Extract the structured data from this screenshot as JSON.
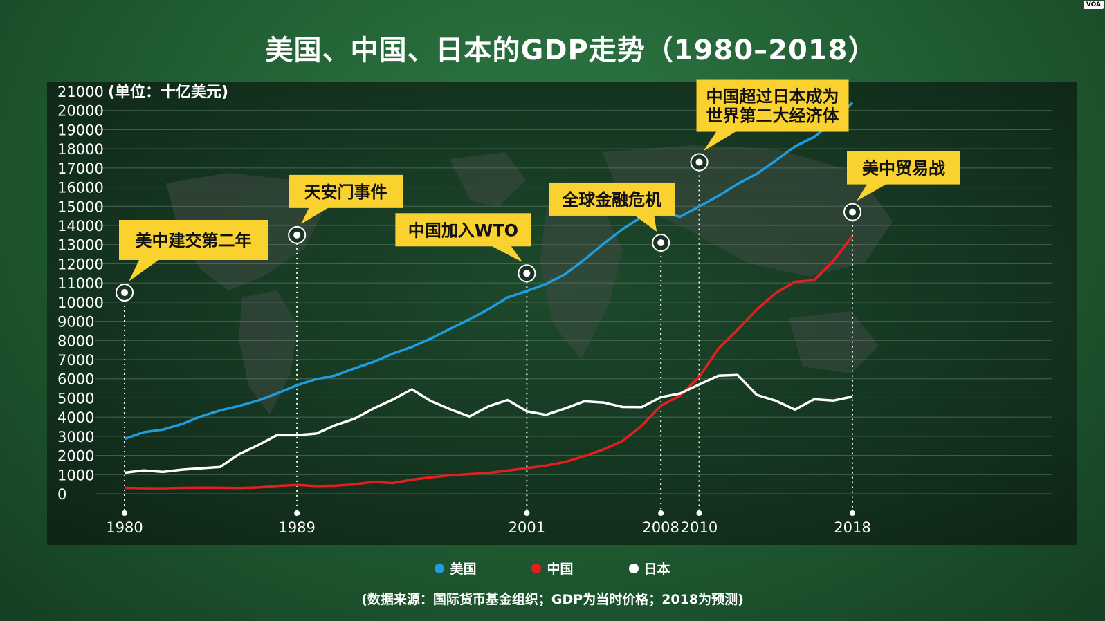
{
  "title": "美国、中国、日本的GDP走势（1980–2018）",
  "badge": "VOA",
  "source_note": "(数据来源：国际货币基金组织；GDP为当时价格；2018为预测)",
  "chart_data": {
    "type": "line",
    "title": "美国、中国、日本的GDP走势（1980–2018）",
    "ylabel": "(单位：十亿美元)",
    "ylim": [
      0,
      21000
    ],
    "xlim": [
      1980,
      2018
    ],
    "yticks": [
      0,
      1000,
      2000,
      3000,
      4000,
      5000,
      6000,
      7000,
      8000,
      9000,
      10000,
      11000,
      12000,
      13000,
      14000,
      15000,
      16000,
      17000,
      18000,
      19000,
      20000,
      21000
    ],
    "xticks": [
      1980,
      1989,
      2001,
      2008,
      2010,
      2018
    ],
    "grid": true,
    "legend_position": "bottom",
    "x": [
      1980,
      1981,
      1982,
      1983,
      1984,
      1985,
      1986,
      1987,
      1988,
      1989,
      1990,
      1991,
      1992,
      1993,
      1994,
      1995,
      1996,
      1997,
      1998,
      1999,
      2000,
      2001,
      2002,
      2003,
      2004,
      2005,
      2006,
      2007,
      2008,
      2009,
      2010,
      2011,
      2012,
      2013,
      2014,
      2015,
      2016,
      2017,
      2018
    ],
    "series": [
      {
        "name": "美国",
        "color": "#1e9ee0",
        "values": [
          2860,
          3210,
          3350,
          3640,
          4040,
          4350,
          4590,
          4870,
          5250,
          5660,
          5980,
          6170,
          6540,
          6880,
          7310,
          7660,
          8100,
          8610,
          9090,
          9630,
          10250,
          10580,
          10940,
          11460,
          12210,
          13040,
          13810,
          14450,
          14710,
          14450,
          14990,
          15540,
          16160,
          16690,
          17390,
          18120,
          18620,
          19390,
          20410
        ]
      },
      {
        "name": "中国",
        "color": "#e81e1e",
        "values": [
          305,
          290,
          285,
          305,
          315,
          310,
          300,
          330,
          410,
          460,
          400,
          420,
          490,
          620,
          560,
          735,
          860,
          960,
          1030,
          1090,
          1210,
          1340,
          1470,
          1660,
          1960,
          2310,
          2760,
          3550,
          4600,
          5110,
          6100,
          7570,
          8560,
          9610,
          10480,
          11060,
          11140,
          12140,
          13460
        ]
      },
      {
        "name": "日本",
        "color": "#ffffff",
        "values": [
          1100,
          1220,
          1140,
          1260,
          1330,
          1400,
          2080,
          2550,
          3080,
          3060,
          3140,
          3580,
          3910,
          4450,
          4910,
          5450,
          4830,
          4410,
          4030,
          4560,
          4890,
          4300,
          4120,
          4450,
          4820,
          4760,
          4530,
          4520,
          5040,
          5230,
          5700,
          6160,
          6200,
          5160,
          4850,
          4390,
          4930,
          4860,
          5070
        ]
      }
    ],
    "annotations": [
      {
        "year": 1980,
        "value": 10500,
        "text": "美中建交第二年"
      },
      {
        "year": 1989,
        "value": 13500,
        "text": "天安门事件"
      },
      {
        "year": 2001,
        "value": 11500,
        "text": "中国加入WTO"
      },
      {
        "year": 2008,
        "value": 13100,
        "text": "全球金融危机"
      },
      {
        "year": 2010,
        "value": 17300,
        "text": "中国超过日本成为\n世界第二大经济体"
      },
      {
        "year": 2018,
        "value": 14700,
        "text": "美中贸易战"
      }
    ]
  }
}
